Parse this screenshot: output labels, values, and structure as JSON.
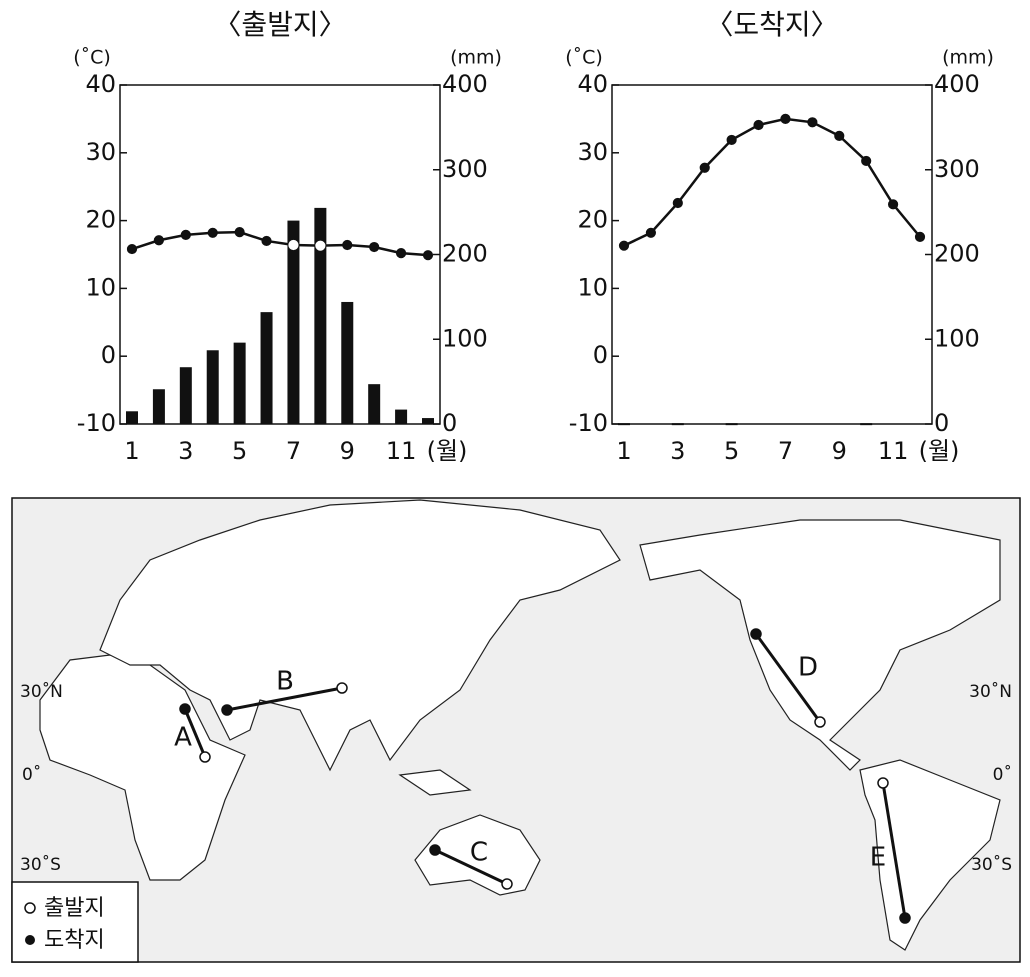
{
  "chart_data": [
    {
      "type": "combo",
      "title": "〈출발지〉",
      "y_label": "(˚C)",
      "y2_label": "(mm)",
      "x_label": "(월)",
      "categories": [
        "1",
        null,
        "3",
        null,
        "5",
        null,
        "7",
        null,
        "9",
        null,
        "11",
        null
      ],
      "ylim": [
        -10,
        40
      ],
      "yticks": [
        -10,
        0,
        10,
        20,
        30,
        40
      ],
      "y2lim": [
        0,
        400
      ],
      "y2ticks": [
        0,
        100,
        200,
        300,
        400
      ],
      "series": [
        {
          "type": "bar",
          "axis": "y2",
          "color": "#111111",
          "values": [
            15,
            41,
            67,
            87,
            96,
            132,
            240,
            255,
            144,
            47,
            17,
            7
          ]
        },
        {
          "type": "line",
          "color": "#111111",
          "values": [
            15.8,
            17.1,
            17.9,
            18.2,
            18.3,
            17.0,
            16.4,
            16.3,
            16.4,
            16.1,
            15.2,
            14.9
          ]
        }
      ]
    },
    {
      "type": "combo",
      "title": "〈도착지〉",
      "y_label": "(˚C)",
      "y2_label": "(mm)",
      "x_label": "(월)",
      "categories": [
        "1",
        null,
        "3",
        null,
        "5",
        null,
        "7",
        null,
        "9",
        null,
        "11",
        null
      ],
      "ylim": [
        -10,
        40
      ],
      "yticks": [
        -10,
        0,
        10,
        20,
        30,
        40
      ],
      "y2lim": [
        0,
        400
      ],
      "y2ticks": [
        0,
        100,
        200,
        300,
        400
      ],
      "series": [
        {
          "type": "bar",
          "axis": "y2",
          "color": "#111111",
          "values": [
            1,
            0,
            1,
            0,
            1,
            0,
            0,
            0,
            0,
            1,
            0,
            0
          ]
        },
        {
          "type": "line",
          "color": "#111111",
          "values": [
            16.3,
            18.2,
            22.6,
            27.8,
            31.9,
            34.1,
            35.0,
            34.5,
            32.5,
            28.8,
            22.4,
            17.6
          ]
        }
      ]
    }
  ],
  "map": {
    "lat_labels": [
      "30˚N",
      "0˚",
      "30˚S"
    ],
    "routes": [
      "A",
      "B",
      "C",
      "D",
      "E"
    ],
    "legend": [
      "출발지",
      "도착지"
    ]
  }
}
